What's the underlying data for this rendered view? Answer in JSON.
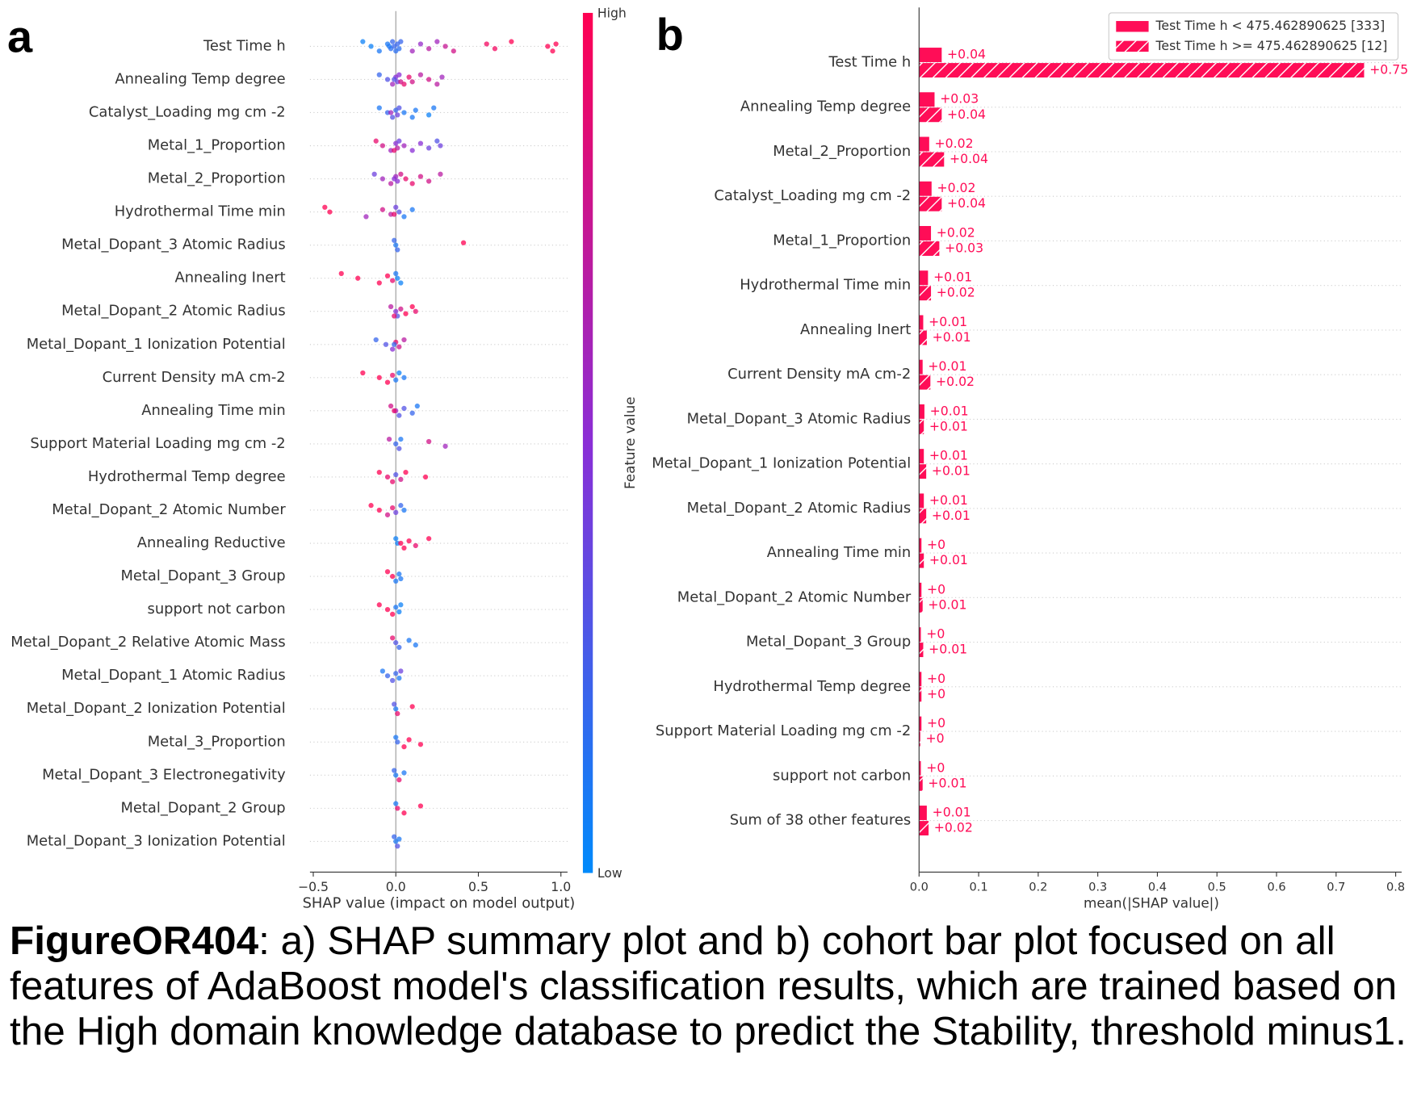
{
  "chart_data": [
    {
      "type": "beeswarm",
      "panel_label": "a",
      "features": [
        "Test Time h",
        "Annealing Temp degree",
        "Catalyst_Loading mg cm -2",
        "Metal_1_Proportion",
        "Metal_2_Proportion",
        "Hydrothermal Time min",
        "Metal_Dopant_3 Atomic Radius",
        "Annealing Inert",
        "Metal_Dopant_2 Atomic Radius",
        "Metal_Dopant_1 Ionization Potential",
        "Current Density mA cm-2",
        "Annealing Time min",
        "Support Material Loading mg cm -2",
        "Hydrothermal Temp degree",
        "Metal_Dopant_2 Atomic Number",
        "Annealing Reductive",
        "Metal_Dopant_3 Group",
        "support not carbon",
        "Metal_Dopant_2 Relative Atomic Mass",
        "Metal_Dopant_1 Atomic Radius",
        "Metal_Dopant_2 Ionization Potential",
        "Metal_3_Proportion",
        "Metal_Dopant_3 Electronegativity",
        "Metal_Dopant_2 Group",
        "Metal_Dopant_3 Ionization Potential"
      ],
      "points": [
        {
          "shap": [
            -0.2,
            -0.15,
            -0.1,
            -0.05,
            -0.03,
            -0.02,
            -0.01,
            0,
            0.01,
            0.02,
            0.03,
            -0.04,
            0.1,
            0.15,
            0.2,
            0.25,
            0.3,
            0.35,
            0.55,
            0.6,
            0.7,
            0.92,
            0.95,
            0.97
          ],
          "feature_value": [
            0.05,
            0.05,
            0.1,
            0.1,
            0.15,
            0.2,
            0.2,
            0.15,
            0.2,
            0.15,
            0.2,
            0.1,
            0.6,
            0.55,
            0.7,
            0.6,
            0.75,
            0.8,
            0.95,
            0.95,
            1,
            1,
            1,
            1
          ]
        },
        {
          "shap": [
            -0.1,
            -0.05,
            -0.02,
            0,
            0.01,
            0.02,
            -0.01,
            0.05,
            0.08,
            0.1,
            0.15,
            0.2,
            0.25,
            0.28,
            0.03
          ],
          "feature_value": [
            0.2,
            0.3,
            0.6,
            0.5,
            0.4,
            0.5,
            0.3,
            0.9,
            0.9,
            0.8,
            0.7,
            0.8,
            0.7,
            0.6,
            0.8
          ]
        },
        {
          "shap": [
            -0.1,
            -0.05,
            -0.02,
            0,
            0.01,
            0.02,
            0.05,
            0.1,
            0.12,
            0.2,
            0.23,
            -0.03
          ],
          "feature_value": [
            0.1,
            0.2,
            0.3,
            0.2,
            0.4,
            0.3,
            0.1,
            0.1,
            0.1,
            0.05,
            0.1,
            0.6
          ]
        },
        {
          "shap": [
            -0.12,
            -0.08,
            -0.03,
            0,
            0.01,
            0.02,
            0.05,
            0.1,
            0.15,
            0.2,
            0.25,
            0.27,
            -0.01
          ],
          "feature_value": [
            0.9,
            0.8,
            0.6,
            0.5,
            0.7,
            0.4,
            0.6,
            0.5,
            0.5,
            0.4,
            0.3,
            0.4,
            0.9
          ]
        },
        {
          "shap": [
            -0.13,
            -0.08,
            -0.03,
            0,
            0.01,
            0.03,
            0.06,
            0.1,
            0.15,
            0.2,
            0.27,
            -0.01
          ],
          "feature_value": [
            0.4,
            0.6,
            0.7,
            0.6,
            0.5,
            0.8,
            0.9,
            0.9,
            0.8,
            0.8,
            0.7,
            0.5
          ]
        },
        {
          "shap": [
            -0.43,
            -0.4,
            -0.18,
            -0.08,
            -0.03,
            0,
            0.02,
            0.05,
            0.1,
            -0.01
          ],
          "feature_value": [
            1,
            1,
            0.6,
            0.8,
            0.7,
            0.4,
            0.3,
            0.1,
            0.1,
            0.9
          ]
        },
        {
          "shap": [
            -0.01,
            0,
            0.01,
            0.41
          ],
          "feature_value": [
            0.2,
            0.1,
            0.2,
            1
          ]
        },
        {
          "shap": [
            -0.33,
            -0.23,
            -0.1,
            -0.05,
            -0.02,
            0,
            0.01,
            0.03
          ],
          "feature_value": [
            1,
            1,
            1,
            1,
            0.9,
            0.1,
            0.05,
            0.05
          ]
        },
        {
          "shap": [
            -0.03,
            0,
            0.01,
            0.03,
            0.06,
            0.1,
            0.12,
            -0.01
          ],
          "feature_value": [
            0.7,
            0.5,
            0.3,
            0.8,
            1,
            1,
            0.9,
            0.9
          ]
        },
        {
          "shap": [
            -0.12,
            -0.06,
            -0.02,
            0,
            0.02,
            0.05,
            -0.01
          ],
          "feature_value": [
            0.2,
            0.3,
            0.5,
            0.9,
            0.8,
            0.7,
            0.2
          ]
        },
        {
          "shap": [
            -0.2,
            -0.1,
            -0.05,
            -0.02,
            0,
            0.02,
            0.05
          ],
          "feature_value": [
            1,
            1,
            1,
            0.9,
            0.1,
            0.05,
            0.1
          ]
        },
        {
          "shap": [
            -0.03,
            0,
            0.02,
            0.05,
            0.1,
            0.13,
            -0.01
          ],
          "feature_value": [
            0.8,
            0.6,
            0.3,
            0.3,
            0.2,
            0.1,
            0.9
          ]
        },
        {
          "shap": [
            -0.04,
            0,
            0.02,
            0.2,
            0.3,
            0.03
          ],
          "feature_value": [
            0.7,
            0.2,
            0.3,
            0.8,
            0.6,
            0.1
          ]
        },
        {
          "shap": [
            -0.1,
            -0.05,
            -0.02,
            0,
            0.03,
            0.06,
            0.18
          ],
          "feature_value": [
            1,
            0.9,
            0.9,
            0.3,
            0.8,
            1,
            1
          ]
        },
        {
          "shap": [
            -0.15,
            -0.1,
            -0.05,
            -0.02,
            0,
            0.03,
            0.05
          ],
          "feature_value": [
            1,
            1,
            0.8,
            0.9,
            0.4,
            0.2,
            0.1
          ]
        },
        {
          "shap": [
            0,
            0.01,
            0.05,
            0.08,
            0.12,
            0.2,
            0.03
          ],
          "feature_value": [
            0.05,
            0.05,
            1,
            1,
            0.9,
            1,
            1
          ]
        },
        {
          "shap": [
            -0.05,
            -0.02,
            0,
            0.02,
            0.03
          ],
          "feature_value": [
            1,
            1,
            0.1,
            0.1,
            0.1
          ]
        },
        {
          "shap": [
            -0.1,
            -0.05,
            -0.02,
            0,
            0.02,
            0.03
          ],
          "feature_value": [
            1,
            1,
            1,
            0.1,
            0.05,
            0.05
          ]
        },
        {
          "shap": [
            -0.02,
            0,
            0.02,
            0.08,
            0.12
          ],
          "feature_value": [
            0.9,
            0.3,
            0.2,
            0.1,
            0.1
          ]
        },
        {
          "shap": [
            -0.08,
            -0.05,
            -0.02,
            0,
            0.02,
            0.03
          ],
          "feature_value": [
            0.1,
            0.2,
            0.3,
            0.2,
            0.1,
            0.4
          ]
        },
        {
          "shap": [
            -0.01,
            0,
            0.01,
            0.1
          ],
          "feature_value": [
            0.3,
            0.1,
            0.9,
            1
          ]
        },
        {
          "shap": [
            0,
            0.01,
            0.05,
            0.08,
            0.15
          ],
          "feature_value": [
            0.1,
            0.2,
            1,
            1,
            1
          ]
        },
        {
          "shap": [
            -0.01,
            0,
            0.02,
            0.05
          ],
          "feature_value": [
            0.2,
            0.1,
            0.9,
            0.1
          ]
        },
        {
          "shap": [
            0,
            0.01,
            0.05,
            0.15
          ],
          "feature_value": [
            0.1,
            0.9,
            1,
            1
          ]
        },
        {
          "shap": [
            -0.01,
            0,
            0.01,
            0.02
          ],
          "feature_value": [
            0.2,
            0.1,
            0.3,
            0.1
          ]
        }
      ],
      "xlim": [
        -0.52,
        1.04
      ],
      "xticks": [
        {
          "value": -0.5,
          "label": "−0.5"
        },
        {
          "value": 0,
          "label": "0.0"
        },
        {
          "value": 0.5,
          "label": "0.5"
        },
        {
          "value": 1,
          "label": "1.0"
        }
      ],
      "xlabel": "SHAP value (impact on model output)",
      "colormap": [
        "#008afb",
        "#8a2ed6",
        "#ff0052"
      ],
      "colorbar": {
        "label": "Feature value",
        "high": "High",
        "low": "Low"
      }
    },
    {
      "type": "bar",
      "panel_label": "b",
      "orientation": "horizontal",
      "categories": [
        "Test Time h",
        "Annealing Temp degree",
        "Metal_2_Proportion",
        "Catalyst_Loading mg cm -2",
        "Metal_1_Proportion",
        "Hydrothermal Time min",
        "Annealing Inert",
        "Current Density mA cm-2",
        "Metal_Dopant_3 Atomic Radius",
        "Metal_Dopant_1 Ionization Potential",
        "Metal_Dopant_2 Atomic Radius",
        "Annealing Time min",
        "Metal_Dopant_2 Atomic Number",
        "Metal_Dopant_3 Group",
        "Hydrothermal Temp degree",
        "Support Material Loading mg cm -2",
        "support not carbon",
        "Sum of 38 other features"
      ],
      "series": [
        {
          "name": "Test Time h < 475.462890625 [333]",
          "color": "#ff0d57",
          "hatch": false,
          "values": [
            0.038,
            0.026,
            0.017,
            0.021,
            0.02,
            0.015,
            0.007,
            0.006,
            0.009,
            0.008,
            0.008,
            0.004,
            0.004,
            0.003,
            0.004,
            0.004,
            0.003,
            0.013
          ],
          "value_labels": [
            "+0.04",
            "+0.03",
            "+0.02",
            "+0.02",
            "+0.02",
            "+0.01",
            "+0.01",
            "+0.01",
            "+0.01",
            "+0.01",
            "+0.01",
            "+0",
            "+0",
            "+0",
            "+0",
            "+0",
            "+0",
            "+0.01"
          ]
        },
        {
          "name": "Test Time h >= 475.462890625 [12]",
          "color": "#ff0d57",
          "hatch": true,
          "values": [
            0.747,
            0.038,
            0.042,
            0.038,
            0.034,
            0.02,
            0.013,
            0.019,
            0.008,
            0.012,
            0.012,
            0.008,
            0.006,
            0.007,
            0.004,
            0.002,
            0.006,
            0.016
          ],
          "value_labels": [
            "+0.75",
            "+0.04",
            "+0.04",
            "+0.04",
            "+0.03",
            "+0.02",
            "+0.01",
            "+0.02",
            "+0.01",
            "+0.01",
            "+0.01",
            "+0.01",
            "+0.01",
            "+0.01",
            "+0",
            "+0",
            "+0.01",
            "+0.02"
          ]
        }
      ],
      "xlim": [
        0,
        0.81
      ],
      "xticks": [
        {
          "value": 0,
          "label": "0.0"
        },
        {
          "value": 0.1,
          "label": "0.1"
        },
        {
          "value": 0.2,
          "label": "0.2"
        },
        {
          "value": 0.3,
          "label": "0.3"
        },
        {
          "value": 0.4,
          "label": "0.4"
        },
        {
          "value": 0.5,
          "label": "0.5"
        },
        {
          "value": 0.6,
          "label": "0.6"
        },
        {
          "value": 0.7,
          "label": "0.7"
        },
        {
          "value": 0.8,
          "label": "0.8"
        }
      ],
      "xlabel": "mean(|SHAP value|)",
      "grid": true,
      "legend": "upper right"
    }
  ],
  "caption": {
    "label": "FigureOR404",
    "text": ": a) SHAP summary plot and b) cohort bar plot focused on all features of AdaBoost model's classification results, which are trained based on the High domain knowledge database to predict the Stability, threshold minus1."
  }
}
